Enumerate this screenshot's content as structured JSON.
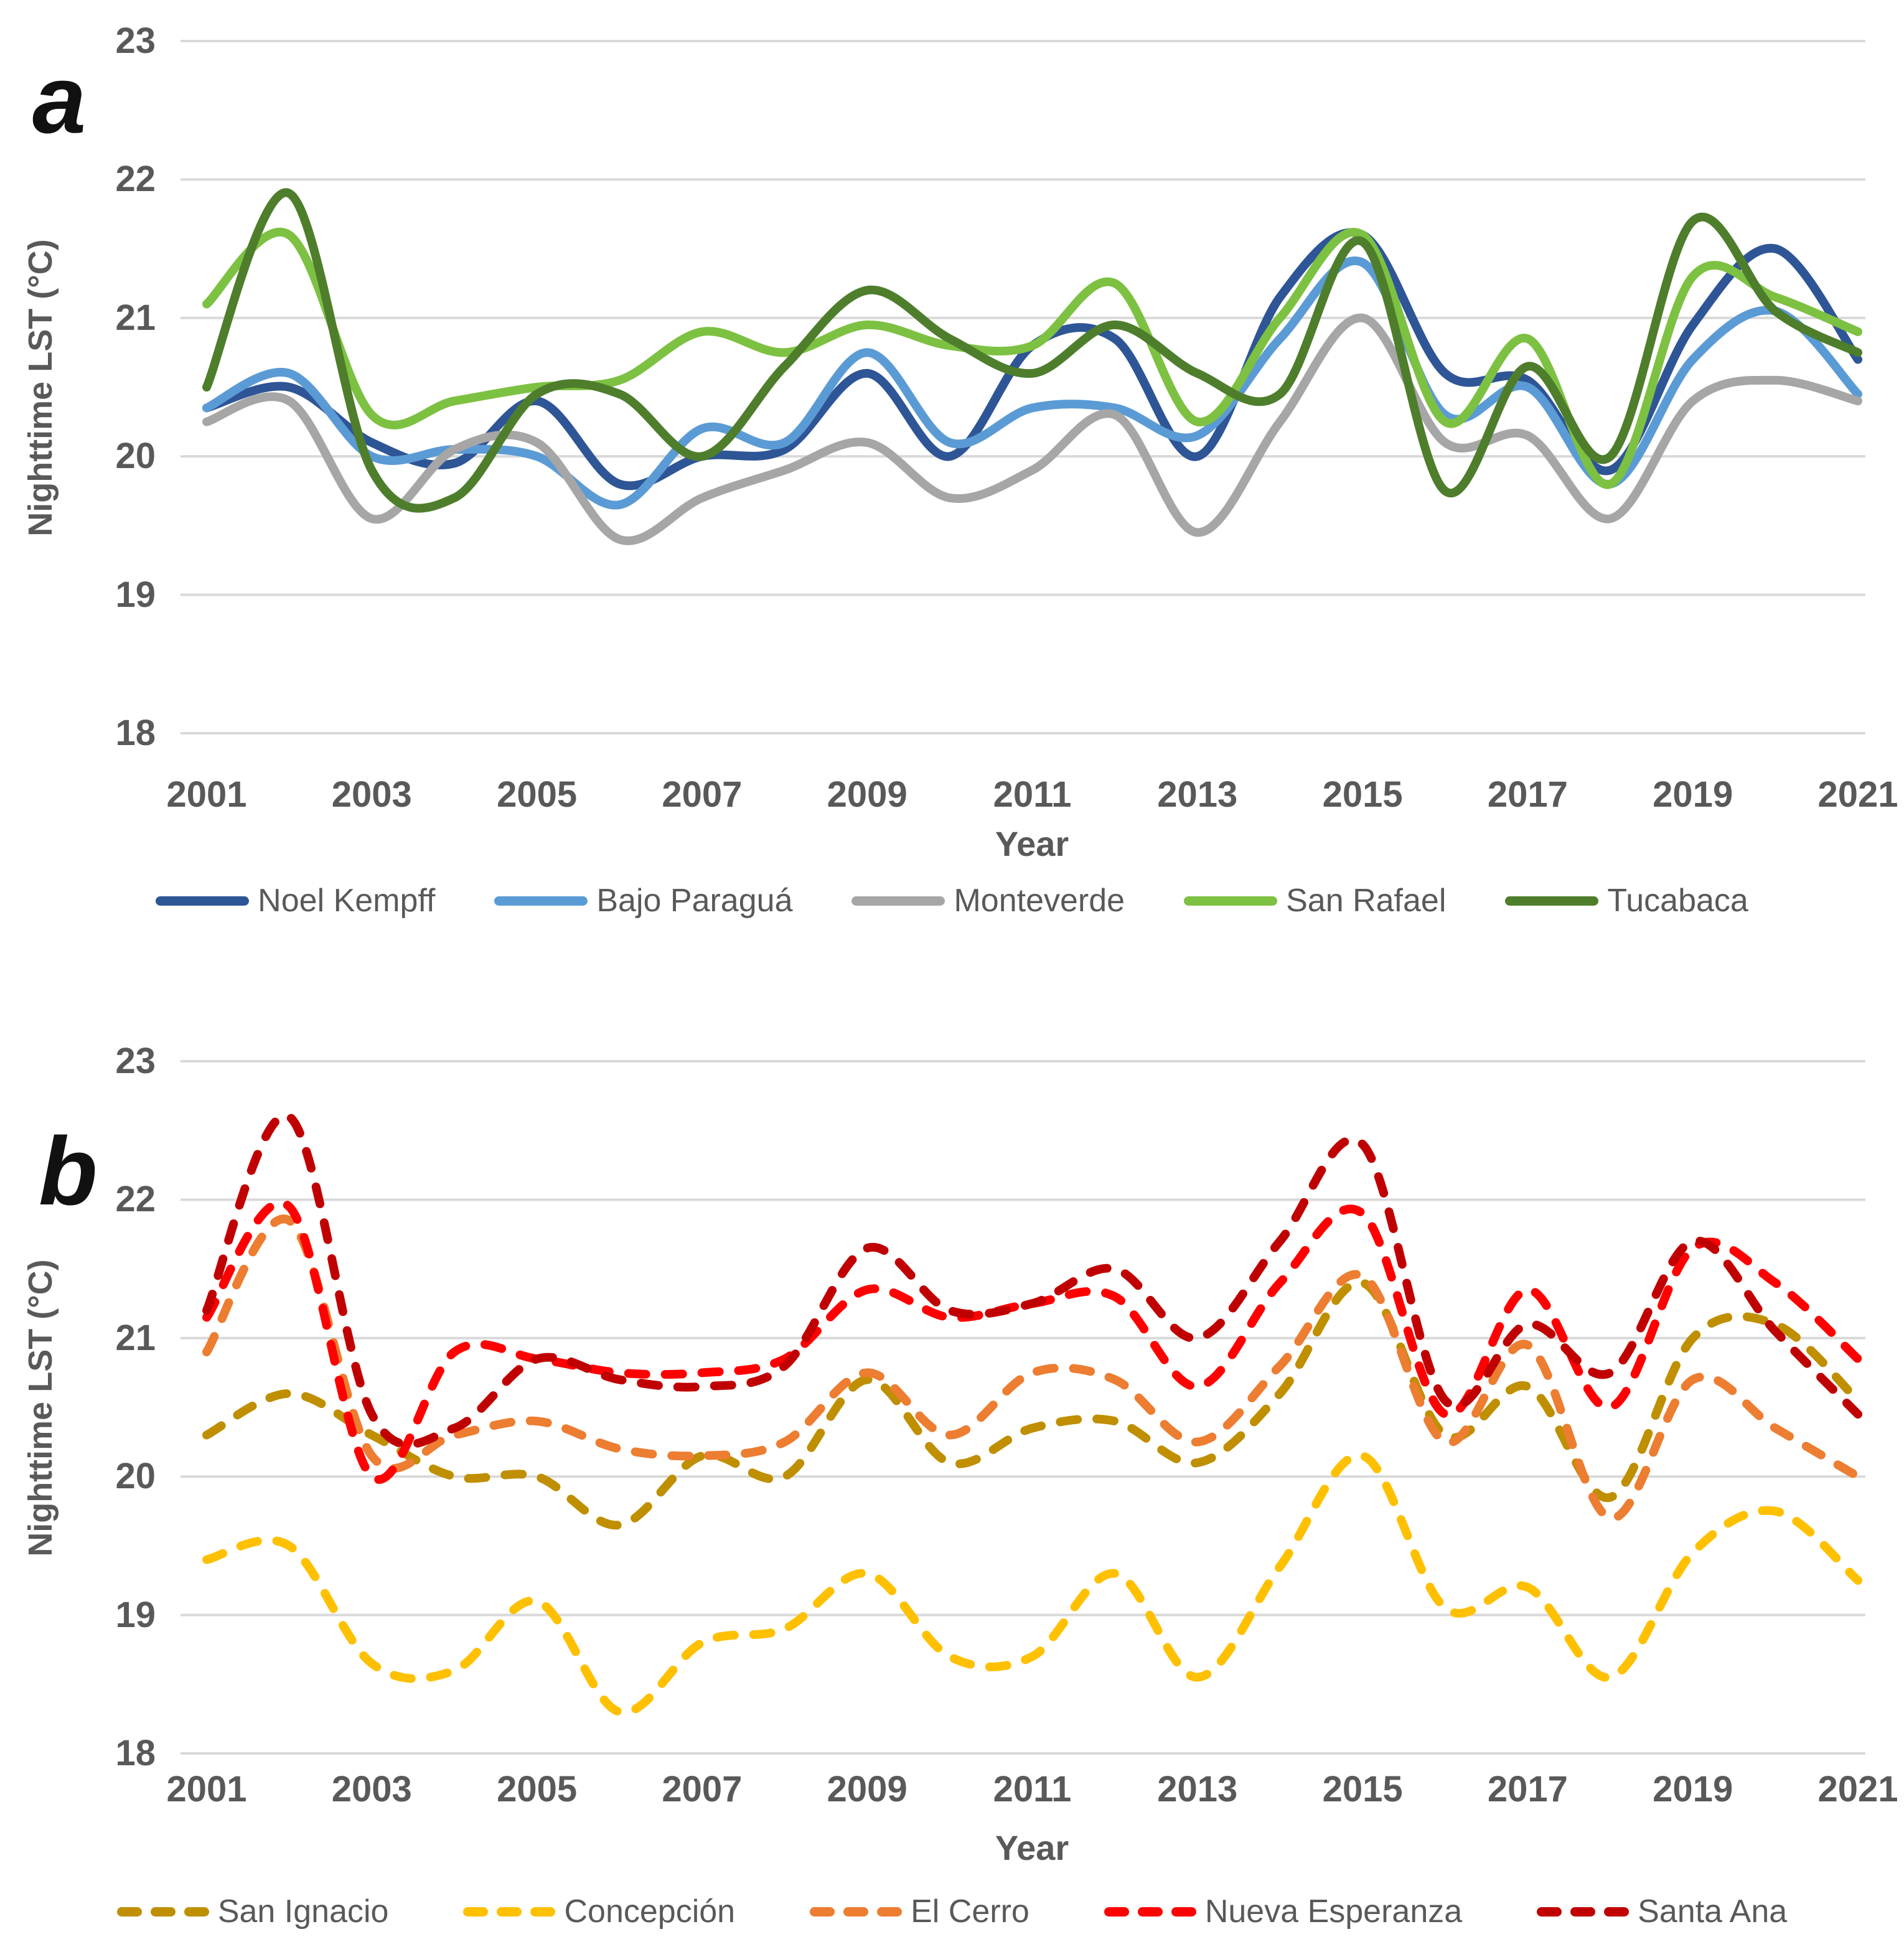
{
  "chart_data": [
    {
      "type": "line",
      "panel_label": "a",
      "line_style": "solid",
      "xlabel": "Year",
      "ylabel": "Nighttime LST (°C)",
      "ylim": [
        18,
        23
      ],
      "grid": "horizontal-only",
      "legend_position": "bottom",
      "yticks": [
        "23",
        "22",
        "21",
        "20",
        "19",
        "18"
      ],
      "xticks": [
        "2001",
        "2003",
        "2005",
        "2007",
        "2009",
        "2011",
        "2013",
        "2015",
        "2017",
        "2019",
        "2021"
      ],
      "x": [
        2001,
        2002,
        2003,
        2004,
        2005,
        2006,
        2007,
        2008,
        2009,
        2010,
        2011,
        2012,
        2013,
        2014,
        2015,
        2016,
        2017,
        2018,
        2019,
        2020,
        2021
      ],
      "series": [
        {
          "name": "Noel Kempff",
          "color": "#2E5596",
          "values": [
            20.35,
            20.5,
            20.1,
            19.95,
            20.4,
            19.8,
            20.0,
            20.05,
            20.6,
            20.0,
            20.8,
            20.85,
            20.0,
            21.15,
            21.6,
            20.6,
            20.55,
            19.9,
            20.95,
            21.5,
            20.7
          ]
        },
        {
          "name": "Bajo Paraguá",
          "color": "#5B9BD5",
          "values": [
            20.35,
            20.6,
            20.0,
            20.05,
            20.0,
            19.65,
            20.2,
            20.1,
            20.75,
            20.1,
            20.35,
            20.35,
            20.15,
            20.85,
            21.4,
            20.3,
            20.5,
            19.8,
            20.7,
            21.05,
            20.45
          ]
        },
        {
          "name": "Monteverde",
          "color": "#A6A6A6",
          "values": [
            20.25,
            20.4,
            19.55,
            20.05,
            20.1,
            19.4,
            19.7,
            19.9,
            20.1,
            19.7,
            19.9,
            20.3,
            19.45,
            20.25,
            21.0,
            20.1,
            20.15,
            19.55,
            20.4,
            20.55,
            20.4
          ]
        },
        {
          "name": "San Rafael",
          "color": "#7DC142",
          "values": [
            21.1,
            21.6,
            20.3,
            20.4,
            20.5,
            20.55,
            20.9,
            20.75,
            20.95,
            20.8,
            20.8,
            21.25,
            20.25,
            21.0,
            21.6,
            20.25,
            20.85,
            19.8,
            21.3,
            21.15,
            20.9
          ]
        },
        {
          "name": "Tucabaca",
          "color": "#4E7E2C",
          "values": [
            20.5,
            21.9,
            19.9,
            19.7,
            20.45,
            20.45,
            20.0,
            20.65,
            21.2,
            20.85,
            20.6,
            20.95,
            20.6,
            20.45,
            21.55,
            19.75,
            20.65,
            20.0,
            21.7,
            21.05,
            20.75
          ]
        }
      ]
    },
    {
      "type": "line",
      "panel_label": "b",
      "line_style": "dashed",
      "xlabel": "Year",
      "ylabel": "Nighttime LST (°C)",
      "ylim": [
        18,
        23
      ],
      "grid": "horizontal-only",
      "legend_position": "bottom",
      "yticks": [
        "23",
        "22",
        "21",
        "20",
        "19",
        "18"
      ],
      "xticks": [
        "2001",
        "2003",
        "2005",
        "2007",
        "2009",
        "2011",
        "2013",
        "2015",
        "2017",
        "2019",
        "2021"
      ],
      "x": [
        2001,
        2002,
        2003,
        2004,
        2005,
        2006,
        2007,
        2008,
        2009,
        2010,
        2011,
        2012,
        2013,
        2014,
        2015,
        2016,
        2017,
        2018,
        2019,
        2020,
        2021
      ],
      "series": [
        {
          "name": "San Ignacio",
          "color": "#BF8F00",
          "values": [
            20.3,
            20.6,
            20.3,
            20.0,
            20.0,
            19.65,
            20.15,
            20.0,
            20.7,
            20.1,
            20.35,
            20.4,
            20.1,
            20.6,
            21.4,
            20.3,
            20.65,
            19.85,
            21.0,
            21.1,
            20.55
          ]
        },
        {
          "name": "Concepción",
          "color": "#FFC000",
          "values": [
            19.4,
            19.5,
            18.65,
            18.6,
            19.1,
            18.3,
            18.8,
            18.9,
            19.3,
            18.7,
            18.7,
            19.3,
            18.55,
            19.35,
            20.15,
            19.05,
            19.2,
            18.55,
            19.45,
            19.75,
            19.25
          ]
        },
        {
          "name": "El Cerro",
          "color": "#ED7D31",
          "values": [
            20.9,
            21.85,
            20.15,
            20.3,
            20.4,
            20.2,
            20.15,
            20.25,
            20.75,
            20.3,
            20.75,
            20.7,
            20.25,
            20.8,
            21.45,
            20.25,
            20.95,
            19.7,
            20.7,
            20.35,
            20.0
          ]
        },
        {
          "name": "Nueva Esperanza",
          "color": "#FF0000",
          "values": [
            21.15,
            21.95,
            20.0,
            20.9,
            20.85,
            20.75,
            20.75,
            20.85,
            21.35,
            21.15,
            21.25,
            21.3,
            20.65,
            21.4,
            21.9,
            20.45,
            21.35,
            20.5,
            21.65,
            21.4,
            20.85
          ]
        },
        {
          "name": "Santa Ana",
          "color": "#C00000",
          "values": [
            21.2,
            22.6,
            20.45,
            20.35,
            20.85,
            20.7,
            20.65,
            20.8,
            21.65,
            21.2,
            21.25,
            21.5,
            21.0,
            21.7,
            22.4,
            20.55,
            21.1,
            20.75,
            21.7,
            21.05,
            20.45
          ]
        }
      ]
    }
  ]
}
